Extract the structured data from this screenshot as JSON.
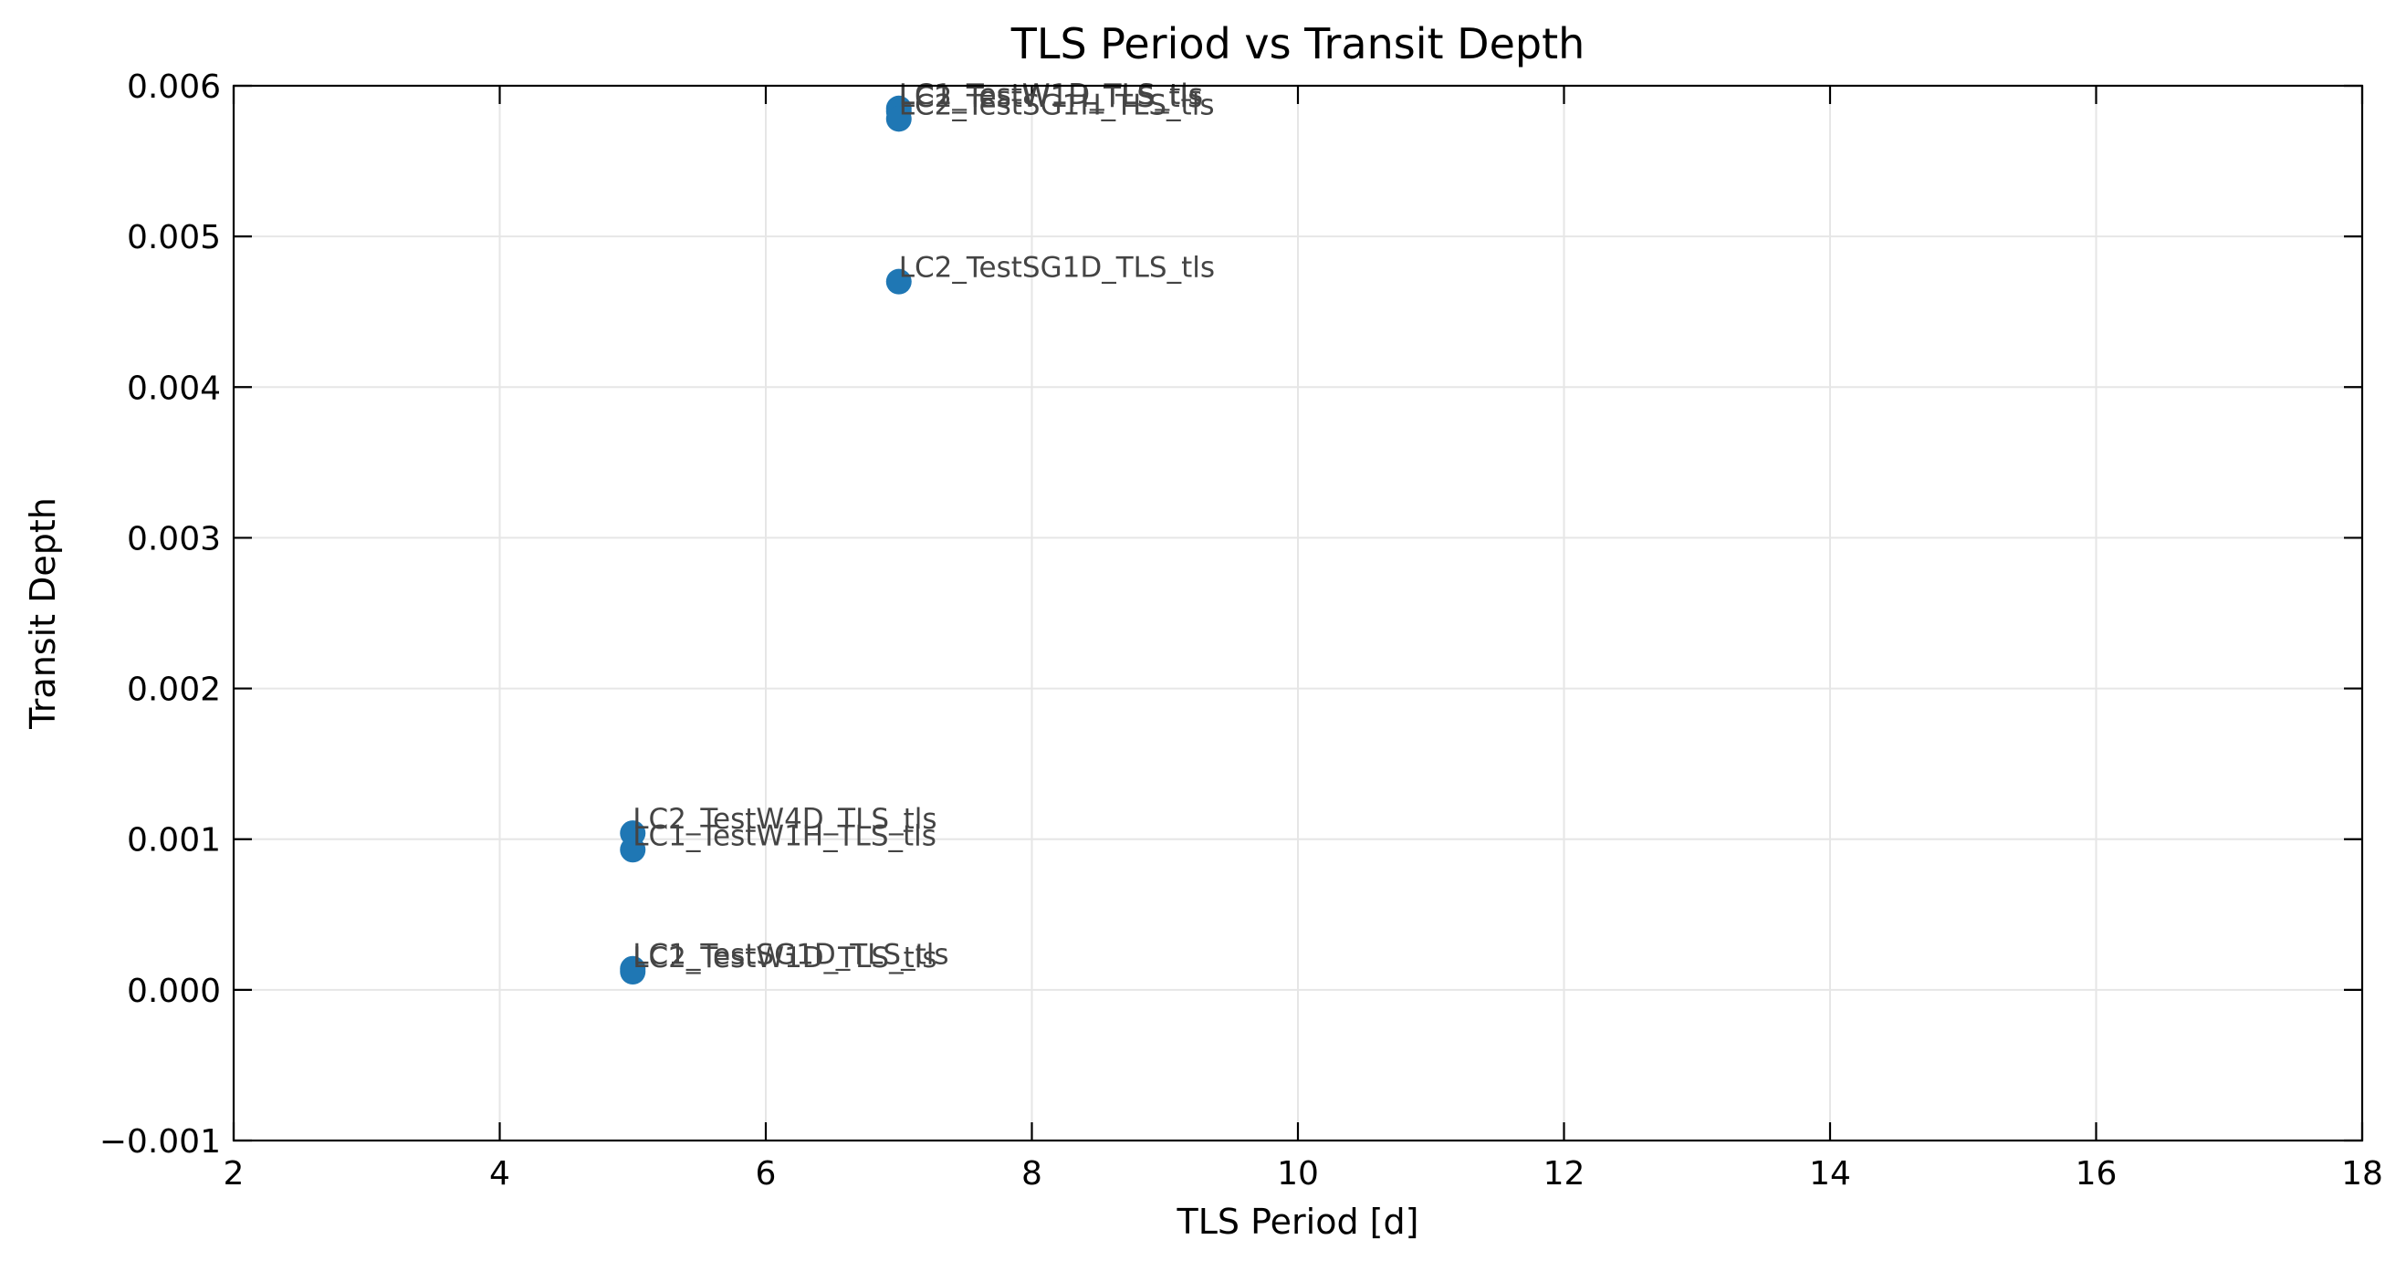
{
  "chart_data": {
    "type": "scatter",
    "title": "TLS Period vs Transit Depth",
    "xlabel": "TLS Period [d]",
    "ylabel": "Transit Depth",
    "xlim": [
      2,
      18
    ],
    "ylim": [
      -0.001,
      0.006
    ],
    "xticks": [
      2,
      4,
      6,
      8,
      10,
      12,
      14,
      16,
      18
    ],
    "xtick_labels": [
      "2",
      "4",
      "6",
      "8",
      "10",
      "12",
      "14",
      "16",
      "18"
    ],
    "yticks": [
      -0.001,
      0.0,
      0.001,
      0.002,
      0.003,
      0.004,
      0.005,
      0.006
    ],
    "ytick_labels": [
      "−0.001",
      "0.000",
      "0.001",
      "0.002",
      "0.003",
      "0.004",
      "0.005",
      "0.006"
    ],
    "grid": true,
    "marker_color": "#1f77b4",
    "annotation_color": "#444444",
    "points": [
      {
        "x": 7.0,
        "y": 0.00585,
        "label": "LC1_TestW1D_TLS_tls"
      },
      {
        "x": 7.0,
        "y": 0.00583,
        "label": "LC2_TestW1H_TLS_tls"
      },
      {
        "x": 7.0,
        "y": 0.00578,
        "label": "LC2_TestSG1H_TLS_tls"
      },
      {
        "x": 7.0,
        "y": 0.0047,
        "label": "LC2_TestSG1D_TLS_tls"
      },
      {
        "x": 5.0,
        "y": 0.00104,
        "label": "LC2_TestW4D_TLS_tls"
      },
      {
        "x": 5.0,
        "y": 0.00093,
        "label": "LC1_TestW1H_TLS_tls"
      },
      {
        "x": 5.0,
        "y": 0.00014,
        "label": "LC1_TestSG1D_TLS_tls"
      },
      {
        "x": 5.0,
        "y": 0.00012,
        "label": "LC2_TestW1D_TLS_tls"
      }
    ]
  }
}
